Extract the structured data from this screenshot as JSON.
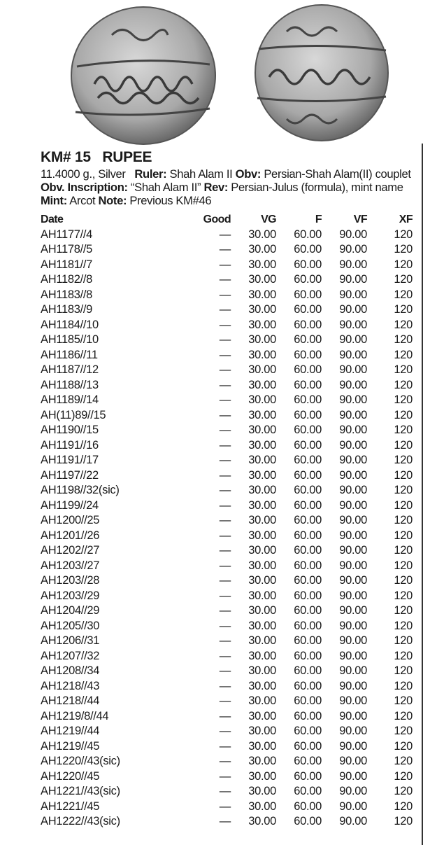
{
  "header": {
    "km_number": "KM# 15",
    "denomination": "RUPEE"
  },
  "description": {
    "weight_metal": "11.4000 g., Silver",
    "ruler_label": "Ruler:",
    "ruler": "Shah Alam II",
    "obv_label": "Obv:",
    "obv": "Persian-Shah Alam(II) couplet",
    "obv_inscription_label": "Obv. Inscription:",
    "obv_inscription": "“Shah Alam II”",
    "rev_label": "Rev:",
    "rev": "Persian-Julus (formula), mint name",
    "mint_label": "Mint:",
    "mint": "Arcot",
    "note_label": "Note:",
    "note": "Previous KM#46"
  },
  "table": {
    "columns": [
      "Date",
      "Good",
      "VG",
      "F",
      "VF",
      "XF"
    ],
    "rows": [
      [
        "AH1177//4",
        "—",
        "30.00",
        "60.00",
        "90.00",
        "120"
      ],
      [
        "AH1178//5",
        "—",
        "30.00",
        "60.00",
        "90.00",
        "120"
      ],
      [
        "AH1181//7",
        "—",
        "30.00",
        "60.00",
        "90.00",
        "120"
      ],
      [
        "AH1182//8",
        "—",
        "30.00",
        "60.00",
        "90.00",
        "120"
      ],
      [
        "AH1183//8",
        "—",
        "30.00",
        "60.00",
        "90.00",
        "120"
      ],
      [
        "AH1183//9",
        "—",
        "30.00",
        "60.00",
        "90.00",
        "120"
      ],
      [
        "AH1184//10",
        "—",
        "30.00",
        "60.00",
        "90.00",
        "120"
      ],
      [
        "AH1185//10",
        "—",
        "30.00",
        "60.00",
        "90.00",
        "120"
      ],
      [
        "AH1186//11",
        "—",
        "30.00",
        "60.00",
        "90.00",
        "120"
      ],
      [
        "AH1187//12",
        "—",
        "30.00",
        "60.00",
        "90.00",
        "120"
      ],
      [
        "AH1188//13",
        "—",
        "30.00",
        "60.00",
        "90.00",
        "120"
      ],
      [
        "AH1189//14",
        "—",
        "30.00",
        "60.00",
        "90.00",
        "120"
      ],
      [
        "AH(11)89//15",
        "—",
        "30.00",
        "60.00",
        "90.00",
        "120"
      ],
      [
        "AH1190//15",
        "—",
        "30.00",
        "60.00",
        "90.00",
        "120"
      ],
      [
        "AH1191//16",
        "—",
        "30.00",
        "60.00",
        "90.00",
        "120"
      ],
      [
        "AH1191//17",
        "—",
        "30.00",
        "60.00",
        "90.00",
        "120"
      ],
      [
        "AH1197//22",
        "—",
        "30.00",
        "60.00",
        "90.00",
        "120"
      ],
      [
        "AH1198//32(sic)",
        "—",
        "30.00",
        "60.00",
        "90.00",
        "120"
      ],
      [
        "AH1199//24",
        "—",
        "30.00",
        "60.00",
        "90.00",
        "120"
      ],
      [
        "AH1200//25",
        "—",
        "30.00",
        "60.00",
        "90.00",
        "120"
      ],
      [
        "AH1201//26",
        "—",
        "30.00",
        "60.00",
        "90.00",
        "120"
      ],
      [
        "AH1202//27",
        "—",
        "30.00",
        "60.00",
        "90.00",
        "120"
      ],
      [
        "AH1203//27",
        "—",
        "30.00",
        "60.00",
        "90.00",
        "120"
      ],
      [
        "AH1203//28",
        "—",
        "30.00",
        "60.00",
        "90.00",
        "120"
      ],
      [
        "AH1203//29",
        "—",
        "30.00",
        "60.00",
        "90.00",
        "120"
      ],
      [
        "AH1204//29",
        "—",
        "30.00",
        "60.00",
        "90.00",
        "120"
      ],
      [
        "AH1205//30",
        "—",
        "30.00",
        "60.00",
        "90.00",
        "120"
      ],
      [
        "AH1206//31",
        "—",
        "30.00",
        "60.00",
        "90.00",
        "120"
      ],
      [
        "AH1207//32",
        "—",
        "30.00",
        "60.00",
        "90.00",
        "120"
      ],
      [
        "AH1208//34",
        "—",
        "30.00",
        "60.00",
        "90.00",
        "120"
      ],
      [
        "AH1218//43",
        "—",
        "30.00",
        "60.00",
        "90.00",
        "120"
      ],
      [
        "AH1218//44",
        "—",
        "30.00",
        "60.00",
        "90.00",
        "120"
      ],
      [
        "AH1219/8//44",
        "—",
        "30.00",
        "60.00",
        "90.00",
        "120"
      ],
      [
        "AH1219//44",
        "—",
        "30.00",
        "60.00",
        "90.00",
        "120"
      ],
      [
        "AH1219//45",
        "—",
        "30.00",
        "60.00",
        "90.00",
        "120"
      ],
      [
        "AH1220//43(sic)",
        "—",
        "30.00",
        "60.00",
        "90.00",
        "120"
      ],
      [
        "AH1220//45",
        "—",
        "30.00",
        "60.00",
        "90.00",
        "120"
      ],
      [
        "AH1221//43(sic)",
        "—",
        "30.00",
        "60.00",
        "90.00",
        "120"
      ],
      [
        "AH1221//45",
        "—",
        "30.00",
        "60.00",
        "90.00",
        "120"
      ],
      [
        "AH1222//43(sic)",
        "—",
        "30.00",
        "60.00",
        "90.00",
        "120"
      ]
    ]
  },
  "images": {
    "obverse": "coin-obverse-photo",
    "reverse": "coin-reverse-photo"
  }
}
